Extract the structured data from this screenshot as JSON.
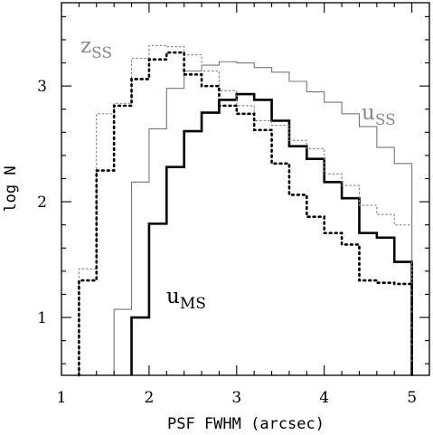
{
  "chart_data": {
    "type": "step",
    "xlabel": "PSF FWHM (arcsec)",
    "ylabel": "log N",
    "xlim": [
      1,
      5.2
    ],
    "ylim": [
      0.5,
      3.72
    ],
    "xticks": [
      "1",
      "2",
      "3",
      "4",
      "5"
    ],
    "yticks": [
      "1",
      "2",
      "3"
    ],
    "grid": false,
    "legend": "none",
    "annotations": [
      {
        "base": "z",
        "sub": "SS",
        "color": "#888888",
        "series": "zSS"
      },
      {
        "base": "u",
        "sub": "SS",
        "color": "#888888",
        "series": "uSS"
      },
      {
        "base": "u",
        "sub": "MS",
        "color": "#000000",
        "series": "uMS"
      }
    ],
    "series": [
      {
        "id": "uSS",
        "style": "solid-thin",
        "color": "#777777",
        "bin_edges": [
          1.6,
          1.8,
          2.0,
          2.2,
          2.4,
          2.6,
          2.8,
          3.0,
          3.2,
          3.4,
          3.6,
          3.8,
          4.0,
          4.2,
          4.4,
          4.6,
          4.8,
          5.0
        ],
        "values": [
          1.07,
          2.17,
          2.63,
          2.98,
          3.13,
          3.18,
          3.21,
          3.2,
          3.16,
          3.12,
          3.04,
          2.95,
          2.86,
          2.76,
          2.65,
          2.47,
          2.33
        ]
      },
      {
        "id": "uMS",
        "style": "solid-thick",
        "color": "#000000",
        "bin_edges": [
          1.8,
          2.0,
          2.2,
          2.4,
          2.6,
          2.8,
          3.0,
          3.2,
          3.4,
          3.6,
          3.8,
          4.0,
          4.2,
          4.4,
          4.6,
          4.8,
          5.0
        ],
        "values": [
          1.0,
          1.81,
          2.3,
          2.61,
          2.77,
          2.88,
          2.93,
          2.88,
          2.7,
          2.48,
          2.37,
          2.17,
          2.03,
          1.73,
          1.69,
          1.48
        ]
      },
      {
        "id": "zSS",
        "style": "dotted-thin",
        "color": "#888888",
        "bin_edges": [
          1.2,
          1.4,
          1.6,
          1.8,
          2.0,
          2.2,
          2.4,
          2.6,
          2.8,
          3.0,
          3.2,
          3.4,
          3.6,
          3.8,
          4.0,
          4.2,
          4.4,
          4.6,
          4.8,
          5.0
        ],
        "values": [
          1.42,
          2.76,
          2.85,
          3.24,
          3.35,
          3.34,
          3.27,
          3.13,
          2.96,
          2.83,
          2.7,
          2.66,
          2.53,
          2.46,
          2.24,
          2.14,
          1.97,
          1.89,
          1.8
        ]
      },
      {
        "id": "zMS",
        "style": "dotted-thick",
        "color": "#000000",
        "bin_edges": [
          1.2,
          1.4,
          1.6,
          1.8,
          2.0,
          2.2,
          2.4,
          2.6,
          2.8,
          3.0,
          3.2,
          3.4,
          3.6,
          3.8,
          4.0,
          4.2,
          4.4,
          4.6,
          4.8,
          5.0
        ],
        "values": [
          1.32,
          2.27,
          2.83,
          3.06,
          3.23,
          3.29,
          3.1,
          3.0,
          2.83,
          2.76,
          2.62,
          2.33,
          2.06,
          1.87,
          1.73,
          1.63,
          1.32,
          1.3,
          1.29
        ]
      }
    ]
  }
}
